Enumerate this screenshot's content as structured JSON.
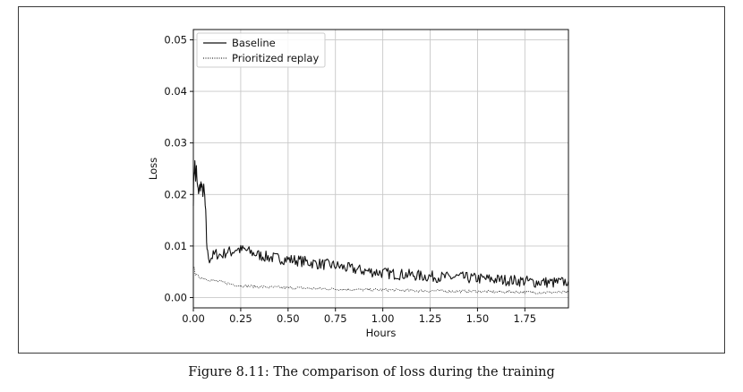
{
  "caption": "Figure 8.11: The comparison of loss during the training",
  "chart_data": {
    "type": "line",
    "title": "",
    "xlabel": "Hours",
    "ylabel": "Loss",
    "xlim": [
      0.0,
      1.98
    ],
    "ylim": [
      -0.002,
      0.052
    ],
    "xticks": [
      0.0,
      0.25,
      0.5,
      0.75,
      1.0,
      1.25,
      1.5,
      1.75
    ],
    "xtick_labels": [
      "0.00",
      "0.25",
      "0.50",
      "0.75",
      "1.00",
      "1.25",
      "1.50",
      "1.75"
    ],
    "yticks": [
      0.0,
      0.01,
      0.02,
      0.03,
      0.04,
      0.05
    ],
    "ytick_labels": [
      "0.00",
      "0.01",
      "0.02",
      "0.03",
      "0.04",
      "0.05"
    ],
    "grid": true,
    "legend_position": "top-left",
    "series": [
      {
        "name": "Baseline",
        "style": "solid",
        "color": "#111111",
        "x": [
          0.0,
          0.003,
          0.008,
          0.012,
          0.016,
          0.02,
          0.025,
          0.03,
          0.035,
          0.04,
          0.045,
          0.05,
          0.055,
          0.06,
          0.065,
          0.07,
          0.075,
          0.085,
          0.1,
          0.12,
          0.15,
          0.18,
          0.2,
          0.23,
          0.25,
          0.27,
          0.3,
          0.35,
          0.4,
          0.45,
          0.5,
          0.55,
          0.6,
          0.65,
          0.7,
          0.75,
          0.8,
          0.85,
          0.9,
          0.95,
          1.0,
          1.05,
          1.1,
          1.15,
          1.2,
          1.25,
          1.3,
          1.35,
          1.4,
          1.45,
          1.5,
          1.55,
          1.6,
          1.65,
          1.7,
          1.75,
          1.8,
          1.85,
          1.9,
          1.95,
          1.98
        ],
        "y": [
          0.019,
          0.024,
          0.026,
          0.023,
          0.025,
          0.022,
          0.0205,
          0.021,
          0.0215,
          0.022,
          0.021,
          0.0205,
          0.021,
          0.0195,
          0.016,
          0.011,
          0.0085,
          0.0075,
          0.008,
          0.0085,
          0.0082,
          0.009,
          0.0088,
          0.0095,
          0.0092,
          0.0093,
          0.0088,
          0.0082,
          0.0078,
          0.0076,
          0.0074,
          0.0072,
          0.0069,
          0.0066,
          0.0064,
          0.0062,
          0.0058,
          0.0055,
          0.0052,
          0.005,
          0.0048,
          0.0046,
          0.0045,
          0.0044,
          0.0042,
          0.0041,
          0.004,
          0.0039,
          0.004,
          0.0038,
          0.0037,
          0.0036,
          0.0035,
          0.0034,
          0.0033,
          0.0032,
          0.003,
          0.003,
          0.0029,
          0.003,
          0.0032
        ]
      },
      {
        "name": "Prioritized replay",
        "style": "dotted",
        "color": "#333333",
        "x": [
          0.0,
          0.005,
          0.01,
          0.02,
          0.03,
          0.05,
          0.07,
          0.1,
          0.15,
          0.2,
          0.25,
          0.3,
          0.4,
          0.5,
          0.6,
          0.7,
          0.8,
          0.9,
          1.0,
          1.1,
          1.2,
          1.3,
          1.4,
          1.5,
          1.6,
          1.7,
          1.8,
          1.9,
          1.98
        ],
        "y": [
          0.0055,
          0.006,
          0.0045,
          0.0042,
          0.004,
          0.0038,
          0.0036,
          0.0033,
          0.003,
          0.0026,
          0.0023,
          0.0022,
          0.002,
          0.0019,
          0.0018,
          0.0017,
          0.0016,
          0.0015,
          0.0015,
          0.0014,
          0.0013,
          0.0013,
          0.0012,
          0.0012,
          0.0011,
          0.0011,
          0.001,
          0.001,
          0.001
        ]
      }
    ]
  }
}
